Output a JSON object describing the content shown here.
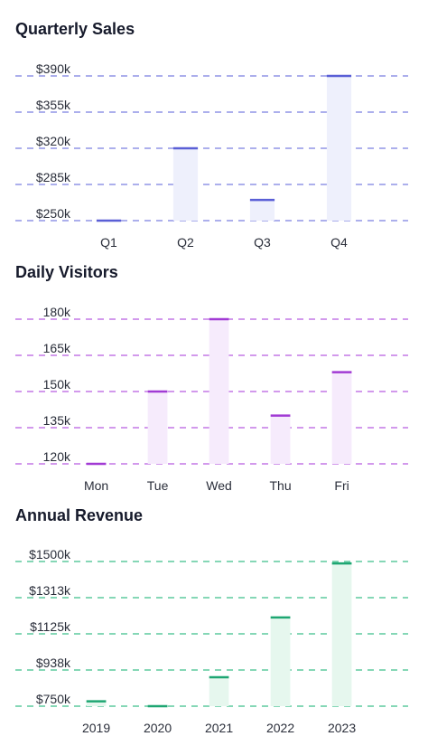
{
  "chart_data": [
    {
      "type": "bar",
      "title": "Quarterly Sales",
      "categories": [
        "Q1",
        "Q2",
        "Q3",
        "Q4"
      ],
      "values": [
        250,
        320,
        270,
        390
      ],
      "ylim": [
        250,
        390
      ],
      "yticks": [
        "$390k",
        "$355k",
        "$320k",
        "$285k",
        "$250k"
      ],
      "grid": true,
      "accent": "#5a5fd6",
      "fill": "#eef0fc",
      "line": "#7a7fe0"
    },
    {
      "type": "bar",
      "title": "Daily Visitors",
      "categories": [
        "Mon",
        "Tue",
        "Wed",
        "Thu",
        "Fri"
      ],
      "values": [
        120,
        150,
        180,
        140,
        158
      ],
      "ylim": [
        120,
        180
      ],
      "yticks": [
        "180k",
        "165k",
        "150k",
        "135k",
        "120k"
      ],
      "grid": true,
      "accent": "#a13ad4",
      "fill": "#f6ebfc",
      "line": "#b85ce0"
    },
    {
      "type": "bar",
      "title": "Annual Revenue",
      "categories": [
        "2019",
        "2020",
        "2021",
        "2022",
        "2023"
      ],
      "values": [
        775,
        750,
        900,
        1210,
        1490
      ],
      "ylim": [
        750,
        1500
      ],
      "yticks": [
        "$1500k",
        "$1313k",
        "$1125k",
        "$938k",
        "$750k"
      ],
      "grid": true,
      "accent": "#1ea672",
      "fill": "#e6f7ee",
      "line": "#3cbf8a"
    }
  ]
}
